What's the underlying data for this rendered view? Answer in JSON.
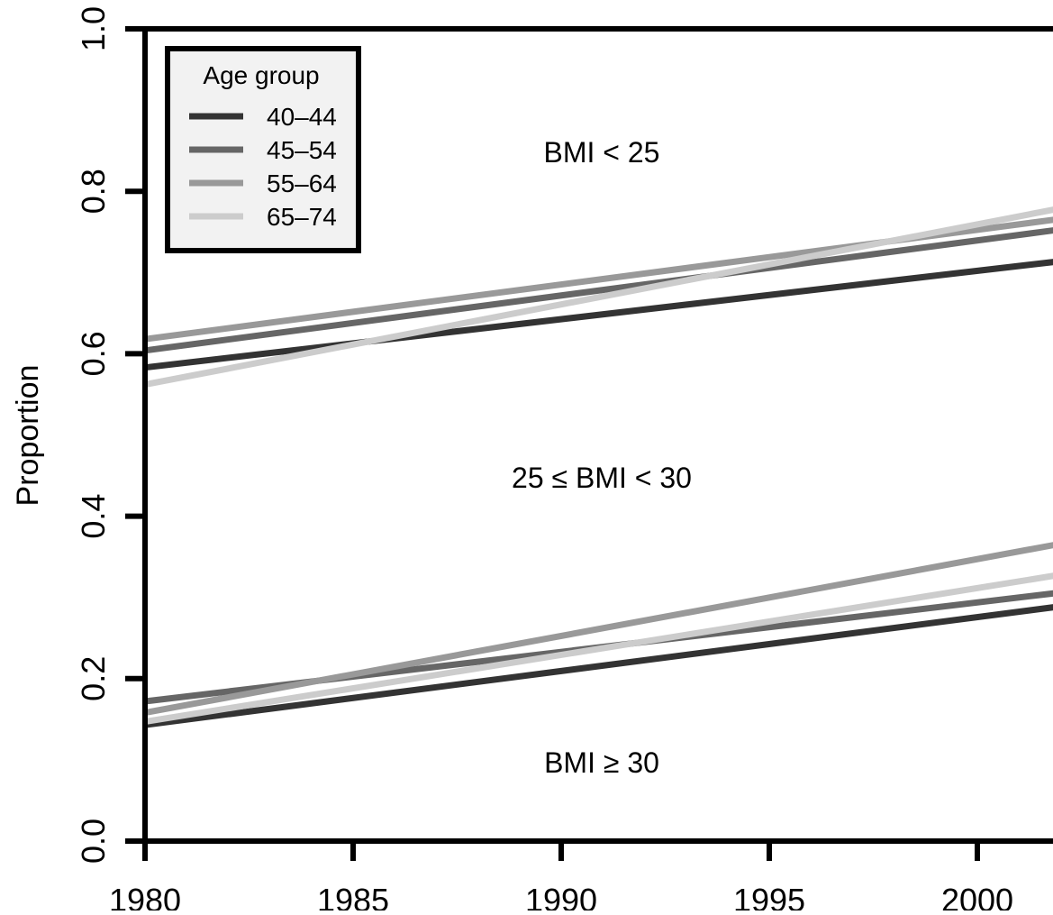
{
  "chart_data": {
    "type": "line",
    "title": "",
    "xlabel": "",
    "ylabel": "Proportion",
    "xlim": [
      1980,
      2002
    ],
    "ylim": [
      0.0,
      1.0
    ],
    "x_ticks": [
      "1980",
      "1985",
      "1990",
      "1995",
      "2000"
    ],
    "y_ticks": [
      "0.0",
      "0.2",
      "0.4",
      "0.6",
      "0.8",
      "1.0"
    ],
    "grid": false,
    "legend": {
      "title": "Age group",
      "placement": "top-left",
      "entries": [
        "40–44",
        "45–54",
        "55–64",
        "65–74"
      ]
    },
    "region_labels": {
      "upper": "BMI < 25",
      "middle": "25 ≤  BMI < 30",
      "lower": "BMI ≥ 30"
    },
    "series": [
      {
        "name": "40–44",
        "group": "upper",
        "color": "#333333",
        "x": [
          1980,
          2002
        ],
        "y": [
          0.583,
          0.714
        ]
      },
      {
        "name": "45–54",
        "group": "upper",
        "color": "#666666",
        "x": [
          1980,
          2002
        ],
        "y": [
          0.604,
          0.753
        ]
      },
      {
        "name": "55–64",
        "group": "upper",
        "color": "#999999",
        "x": [
          1980,
          2002
        ],
        "y": [
          0.618,
          0.766
        ]
      },
      {
        "name": "65–74",
        "group": "upper",
        "color": "#cccccc",
        "x": [
          1980,
          2002
        ],
        "y": [
          0.562,
          0.779
        ]
      },
      {
        "name": "40–44",
        "group": "lower",
        "color": "#333333",
        "x": [
          1980,
          2002
        ],
        "y": [
          0.143,
          0.289
        ]
      },
      {
        "name": "45–54",
        "group": "lower",
        "color": "#666666",
        "x": [
          1980,
          2002
        ],
        "y": [
          0.172,
          0.306
        ]
      },
      {
        "name": "55–64",
        "group": "lower",
        "color": "#999999",
        "x": [
          1980,
          2002
        ],
        "y": [
          0.158,
          0.366
        ]
      },
      {
        "name": "65–74",
        "group": "lower",
        "color": "#cccccc",
        "x": [
          1980,
          2002
        ],
        "y": [
          0.147,
          0.328
        ]
      }
    ]
  }
}
